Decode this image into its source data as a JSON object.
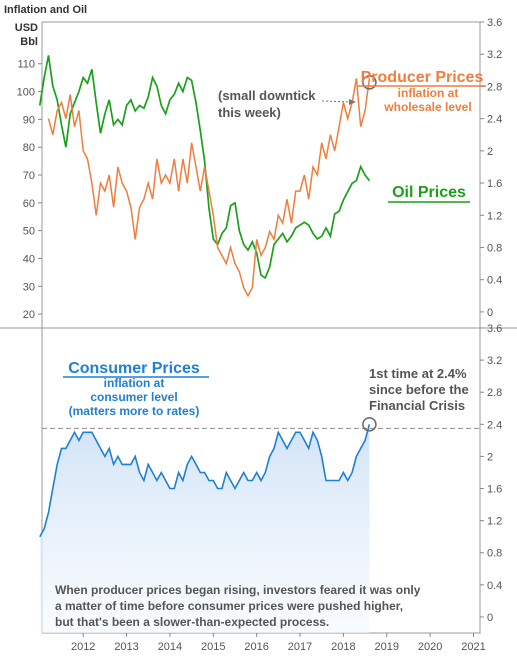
{
  "colors": {
    "producer": "#f07d3c",
    "oil": "#1aa01a",
    "consumer": "#1f7fd6",
    "consumer_fill": "#dceaf8",
    "annotation_text": "#555555",
    "axis": "#777777"
  },
  "chart_data": [
    {
      "type": "line",
      "title": "Inflation and Oil",
      "left_unit": [
        "USD",
        "Bbl"
      ],
      "x_range": [
        2011.05,
        2021.15
      ],
      "left_axis": {
        "min": 15,
        "max": 125,
        "ticks": [
          20,
          30,
          40,
          50,
          60,
          70,
          80,
          90,
          100,
          110
        ]
      },
      "right_axis": {
        "min": -0.2,
        "max": 3.6,
        "ticks": [
          "0",
          "0.4",
          "0.8",
          "1.2",
          "1.6",
          "2",
          "2.4",
          "2.8",
          "3.2",
          "3.6"
        ]
      },
      "series": [
        {
          "name": "Producer Prices",
          "axis": "right",
          "x": [
            2011.2,
            2011.3,
            2011.4,
            2011.5,
            2011.6,
            2011.7,
            2011.8,
            2011.9,
            2012.0,
            2012.1,
            2012.2,
            2012.3,
            2012.4,
            2012.5,
            2012.6,
            2012.7,
            2012.8,
            2012.9,
            2013.0,
            2013.1,
            2013.2,
            2013.3,
            2013.4,
            2013.5,
            2013.6,
            2013.7,
            2013.8,
            2013.9,
            2014.0,
            2014.1,
            2014.2,
            2014.3,
            2014.4,
            2014.5,
            2014.6,
            2014.7,
            2014.8,
            2014.9,
            2015.0,
            2015.1,
            2015.2,
            2015.3,
            2015.4,
            2015.5,
            2015.6,
            2015.7,
            2015.8,
            2015.9,
            2016.0,
            2016.1,
            2016.2,
            2016.3,
            2016.4,
            2016.5,
            2016.6,
            2016.7,
            2016.8,
            2016.9,
            2017.0,
            2017.1,
            2017.2,
            2017.3,
            2017.4,
            2017.5,
            2017.6,
            2017.7,
            2017.8,
            2017.9,
            2018.0,
            2018.1,
            2018.2,
            2018.3,
            2018.4,
            2018.5,
            2018.6
          ],
          "values": [
            2.4,
            2.2,
            2.5,
            2.6,
            2.4,
            2.7,
            2.3,
            2.5,
            2.0,
            1.9,
            1.6,
            1.2,
            1.6,
            1.5,
            1.7,
            1.3,
            1.8,
            1.6,
            1.5,
            1.3,
            0.9,
            1.3,
            1.4,
            1.6,
            1.4,
            1.9,
            1.6,
            1.7,
            1.6,
            1.9,
            1.5,
            1.9,
            1.6,
            2.1,
            1.8,
            1.5,
            1.8,
            1.5,
            1.2,
            0.8,
            0.7,
            0.6,
            0.8,
            0.6,
            0.5,
            0.3,
            0.2,
            0.3,
            0.9,
            0.7,
            0.8,
            1.0,
            0.9,
            1.2,
            1.1,
            1.4,
            1.1,
            1.5,
            1.5,
            1.7,
            1.4,
            1.8,
            1.7,
            2.1,
            1.9,
            2.2,
            2.0,
            2.3,
            2.6,
            2.4,
            2.6,
            2.9,
            2.3,
            2.5,
            2.9
          ]
        },
        {
          "name": "Oil Prices",
          "axis": "left",
          "x": [
            2011.0,
            2011.1,
            2011.2,
            2011.3,
            2011.4,
            2011.5,
            2011.6,
            2011.7,
            2011.8,
            2011.9,
            2012.0,
            2012.1,
            2012.2,
            2012.3,
            2012.4,
            2012.5,
            2012.6,
            2012.7,
            2012.8,
            2012.9,
            2013.0,
            2013.1,
            2013.2,
            2013.3,
            2013.4,
            2013.5,
            2013.6,
            2013.7,
            2013.8,
            2013.9,
            2014.0,
            2014.1,
            2014.2,
            2014.3,
            2014.4,
            2014.5,
            2014.6,
            2014.7,
            2014.8,
            2014.9,
            2015.0,
            2015.1,
            2015.2,
            2015.3,
            2015.4,
            2015.5,
            2015.6,
            2015.7,
            2015.8,
            2015.9,
            2016.0,
            2016.1,
            2016.2,
            2016.3,
            2016.4,
            2016.5,
            2016.6,
            2016.7,
            2016.8,
            2016.9,
            2017.0,
            2017.1,
            2017.2,
            2017.3,
            2017.4,
            2017.5,
            2017.6,
            2017.7,
            2017.8,
            2017.9,
            2018.0,
            2018.1,
            2018.2,
            2018.3,
            2018.4,
            2018.5,
            2018.6
          ],
          "values": [
            95,
            105,
            113,
            102,
            97,
            88,
            80,
            92,
            96,
            100,
            105,
            103,
            108,
            96,
            85,
            92,
            97,
            88,
            90,
            88,
            95,
            97,
            93,
            95,
            94,
            98,
            105,
            102,
            95,
            92,
            97,
            99,
            103,
            100,
            105,
            104,
            96,
            86,
            75,
            58,
            47,
            45,
            49,
            51,
            59,
            60,
            50,
            45,
            43,
            46,
            42,
            34,
            33,
            37,
            45,
            47,
            49,
            46,
            48,
            51,
            52,
            53,
            52,
            49,
            47,
            48,
            51,
            48,
            56,
            57,
            61,
            64,
            67,
            68,
            73,
            70,
            68
          ]
        },
        {
          "name": "Consumer Prices",
          "axis": "right",
          "fill": true,
          "x": [
            2011.0,
            2011.1,
            2011.2,
            2011.3,
            2011.4,
            2011.5,
            2011.6,
            2011.7,
            2011.8,
            2011.9,
            2012.0,
            2012.1,
            2012.2,
            2012.3,
            2012.4,
            2012.5,
            2012.6,
            2012.7,
            2012.8,
            2012.9,
            2013.0,
            2013.1,
            2013.2,
            2013.3,
            2013.4,
            2013.5,
            2013.6,
            2013.7,
            2013.8,
            2013.9,
            2014.0,
            2014.1,
            2014.2,
            2014.3,
            2014.4,
            2014.5,
            2014.6,
            2014.7,
            2014.8,
            2014.9,
            2015.0,
            2015.1,
            2015.2,
            2015.3,
            2015.4,
            2015.5,
            2015.6,
            2015.7,
            2015.8,
            2015.9,
            2016.0,
            2016.1,
            2016.2,
            2016.3,
            2016.4,
            2016.5,
            2016.6,
            2016.7,
            2016.8,
            2016.9,
            2017.0,
            2017.1,
            2017.2,
            2017.3,
            2017.4,
            2017.5,
            2017.6,
            2017.7,
            2017.8,
            2017.9,
            2018.0,
            2018.1,
            2018.2,
            2018.3,
            2018.4,
            2018.5,
            2018.6
          ],
          "values": [
            1.0,
            1.1,
            1.3,
            1.6,
            1.9,
            2.1,
            2.1,
            2.2,
            2.3,
            2.2,
            2.3,
            2.3,
            2.3,
            2.2,
            2.1,
            2.0,
            2.1,
            1.9,
            2.0,
            1.9,
            1.9,
            1.9,
            2.0,
            1.8,
            1.7,
            1.9,
            1.8,
            1.7,
            1.8,
            1.7,
            1.6,
            1.6,
            1.8,
            1.7,
            1.9,
            2.0,
            1.9,
            1.8,
            1.8,
            1.7,
            1.7,
            1.6,
            1.6,
            1.8,
            1.7,
            1.6,
            1.7,
            1.8,
            1.7,
            1.7,
            1.8,
            1.7,
            1.8,
            2.0,
            2.1,
            2.3,
            2.2,
            2.1,
            2.2,
            2.3,
            2.3,
            2.2,
            2.1,
            2.3,
            2.2,
            2.0,
            1.7,
            1.7,
            1.7,
            1.7,
            1.8,
            1.7,
            1.8,
            2.0,
            2.1,
            2.2,
            2.4
          ]
        }
      ]
    },
    {
      "type": "area",
      "x_range": [
        2011.05,
        2021.15
      ],
      "right_axis": {
        "min": -0.2,
        "max": 3.6,
        "ticks": [
          "0",
          "0.4",
          "0.8",
          "1.2",
          "1.6",
          "2",
          "2.4",
          "2.8",
          "3.2",
          "3.6"
        ]
      },
      "x_ticks": [
        "2012",
        "2013",
        "2014",
        "2015",
        "2016",
        "2017",
        "2018",
        "2019",
        "2020",
        "2021"
      ],
      "reference_line": 2.35
    }
  ],
  "annotations": {
    "producer_title": "Producer Prices",
    "producer_sub1": "inflation at",
    "producer_sub2": "wholesale level",
    "downtick1": "(small downtick",
    "downtick2": "this week)",
    "oil_title": "Oil Prices",
    "consumer_title": "Consumer Prices",
    "consumer_sub1": "inflation at",
    "consumer_sub2": "consumer level",
    "consumer_sub3": "(matters more to rates)",
    "first1": "1st time at 2.4%",
    "first2": "since before the",
    "first3": "Financial Crisis",
    "note1": "When producer prices began rising, investors feared it was only",
    "note2": "a matter of time before consumer prices were pushed higher,",
    "note3": "but that's been a slower-than-expected process."
  }
}
